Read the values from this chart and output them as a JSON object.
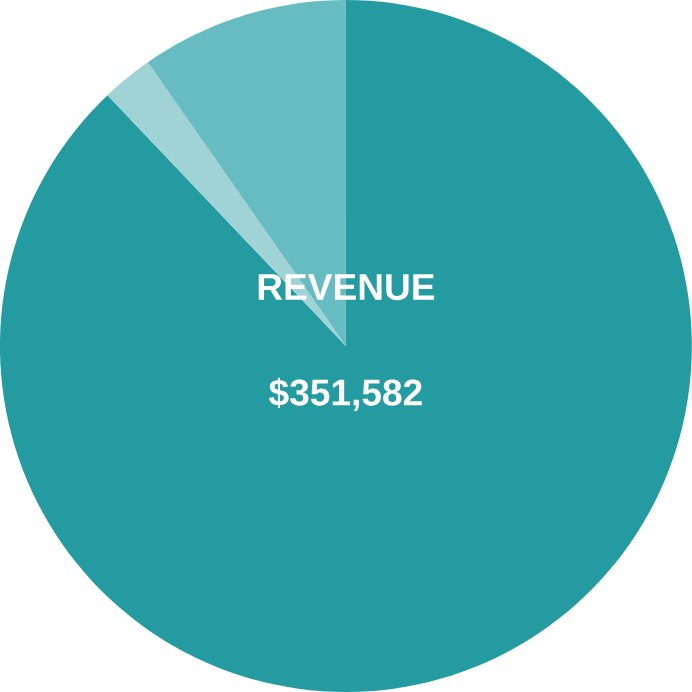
{
  "chart_data": {
    "type": "pie",
    "categories": [
      null,
      null,
      null
    ],
    "values": [
      87.9,
      2.4,
      9.7
    ],
    "colors": [
      "#239ba0",
      "#9fd3d5",
      "#66bcc0"
    ],
    "annotations": [
      "REVENUE",
      "$351,582"
    ]
  }
}
